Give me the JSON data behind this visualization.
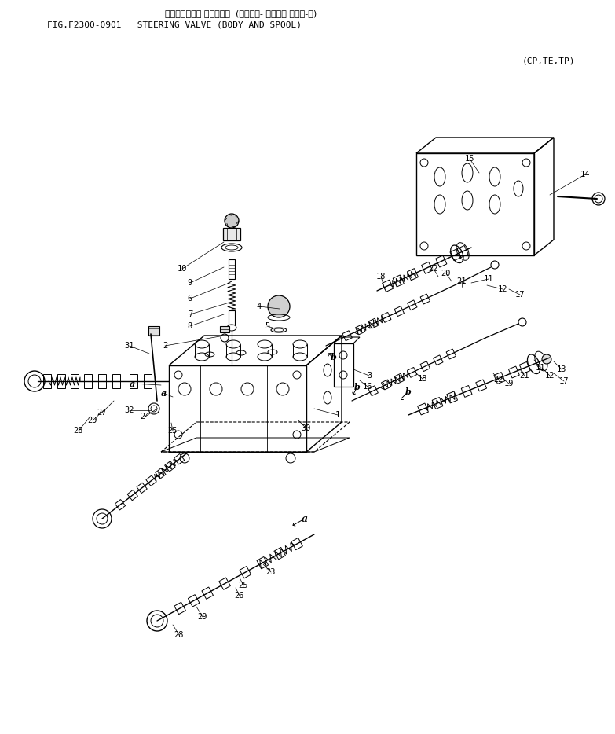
{
  "title_line1": "ステアリング゚ パルプ  (ボディー- オヨピ スプ゚-ル)",
  "title_line2": "FIG.F2300-0901   STEERING VALVE (BODY AND SPOOL)",
  "subtitle": "(CP,TE,TP)",
  "bg_color": "#ffffff"
}
